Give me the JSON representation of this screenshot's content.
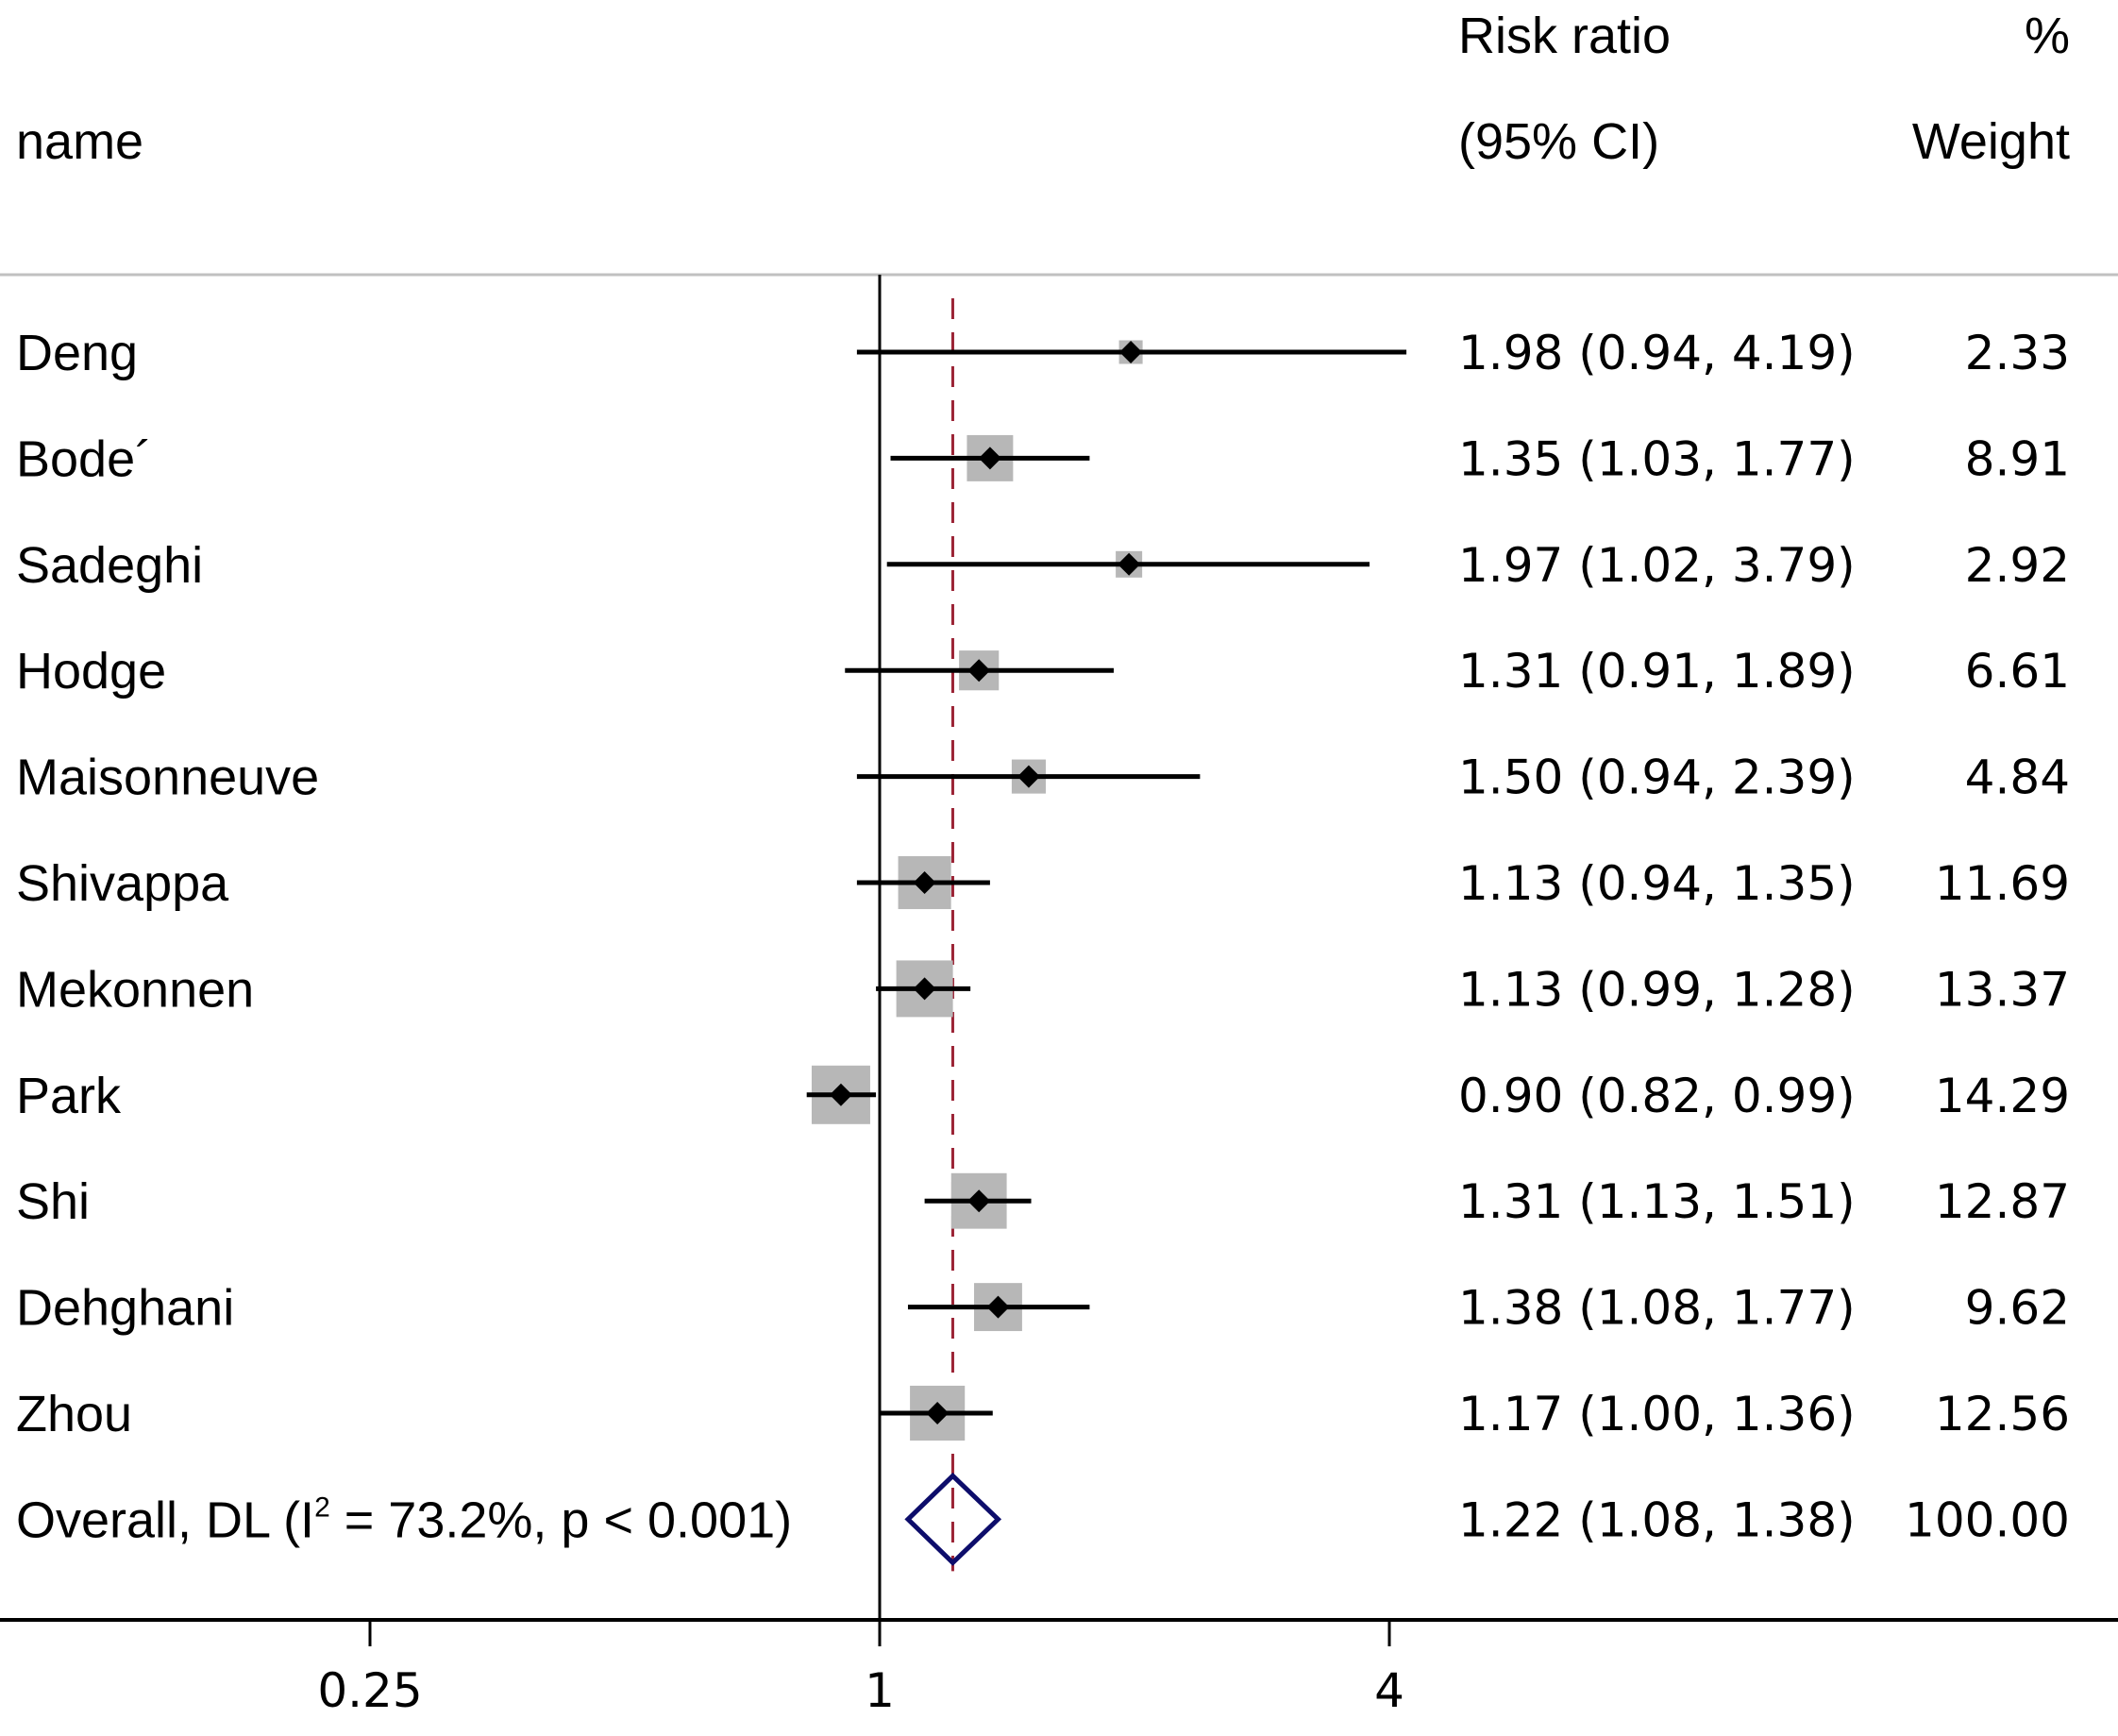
{
  "chart_data": {
    "type": "forest",
    "title": "",
    "xlabel": "",
    "x_scale": "log",
    "x_ticks": [
      0.25,
      1,
      4
    ],
    "x_tick_labels": [
      "0.25",
      "1",
      "4"
    ],
    "null_value": 1,
    "headers": {
      "name": "name",
      "effect_line1": "Risk ratio",
      "effect_line2": "(95% CI)",
      "weight_line1": "%",
      "weight_line2": "Weight"
    },
    "studies": [
      {
        "name": "Deng",
        "rr": 1.98,
        "lo": 0.94,
        "hi": 4.19,
        "ci_text": "1.98 (0.94, 4.19)",
        "weight": 2.33,
        "weight_text": "2.33"
      },
      {
        "name": "Bode´",
        "rr": 1.35,
        "lo": 1.03,
        "hi": 1.77,
        "ci_text": "1.35 (1.03, 1.77)",
        "weight": 8.91,
        "weight_text": "8.91"
      },
      {
        "name": "Sadeghi",
        "rr": 1.97,
        "lo": 1.02,
        "hi": 3.79,
        "ci_text": "1.97 (1.02, 3.79)",
        "weight": 2.92,
        "weight_text": "2.92"
      },
      {
        "name": "Hodge",
        "rr": 1.31,
        "lo": 0.91,
        "hi": 1.89,
        "ci_text": "1.31 (0.91, 1.89)",
        "weight": 6.61,
        "weight_text": "6.61"
      },
      {
        "name": "Maisonneuve",
        "rr": 1.5,
        "lo": 0.94,
        "hi": 2.39,
        "ci_text": "1.50 (0.94, 2.39)",
        "weight": 4.84,
        "weight_text": "4.84"
      },
      {
        "name": "Shivappa",
        "rr": 1.13,
        "lo": 0.94,
        "hi": 1.35,
        "ci_text": "1.13 (0.94, 1.35)",
        "weight": 11.69,
        "weight_text": "11.69"
      },
      {
        "name": "Mekonnen",
        "rr": 1.13,
        "lo": 0.99,
        "hi": 1.28,
        "ci_text": "1.13 (0.99, 1.28)",
        "weight": 13.37,
        "weight_text": "13.37"
      },
      {
        "name": "Park",
        "rr": 0.9,
        "lo": 0.82,
        "hi": 0.99,
        "ci_text": "0.90 (0.82, 0.99)",
        "weight": 14.29,
        "weight_text": "14.29"
      },
      {
        "name": "Shi",
        "rr": 1.31,
        "lo": 1.13,
        "hi": 1.51,
        "ci_text": "1.31 (1.13, 1.51)",
        "weight": 12.87,
        "weight_text": "12.87"
      },
      {
        "name": "Dehghani",
        "rr": 1.38,
        "lo": 1.08,
        "hi": 1.77,
        "ci_text": "1.38 (1.08, 1.77)",
        "weight": 9.62,
        "weight_text": "9.62"
      },
      {
        "name": "Zhou",
        "rr": 1.17,
        "lo": 1.0,
        "hi": 1.36,
        "ci_text": "1.17 (1.00, 1.36)",
        "weight": 12.56,
        "weight_text": "12.56"
      }
    ],
    "overall": {
      "label_prefix": "Overall, DL (I",
      "label_sup": "2",
      "label_suffix": " = 73.2%, p < 0.001)",
      "rr": 1.22,
      "lo": 1.08,
      "hi": 1.38,
      "ci_text": "1.22 (1.08, 1.38)",
      "weight": 100.0,
      "weight_text": "100.00"
    },
    "colors": {
      "ci_line": "#000000",
      "weight_box": "#b7b7b7",
      "point": "#000000",
      "overall_diamond": "#0d0d6b",
      "overall_line": "#9b2335",
      "null_line": "#000000",
      "header_rule": "#c0c0c0"
    }
  }
}
